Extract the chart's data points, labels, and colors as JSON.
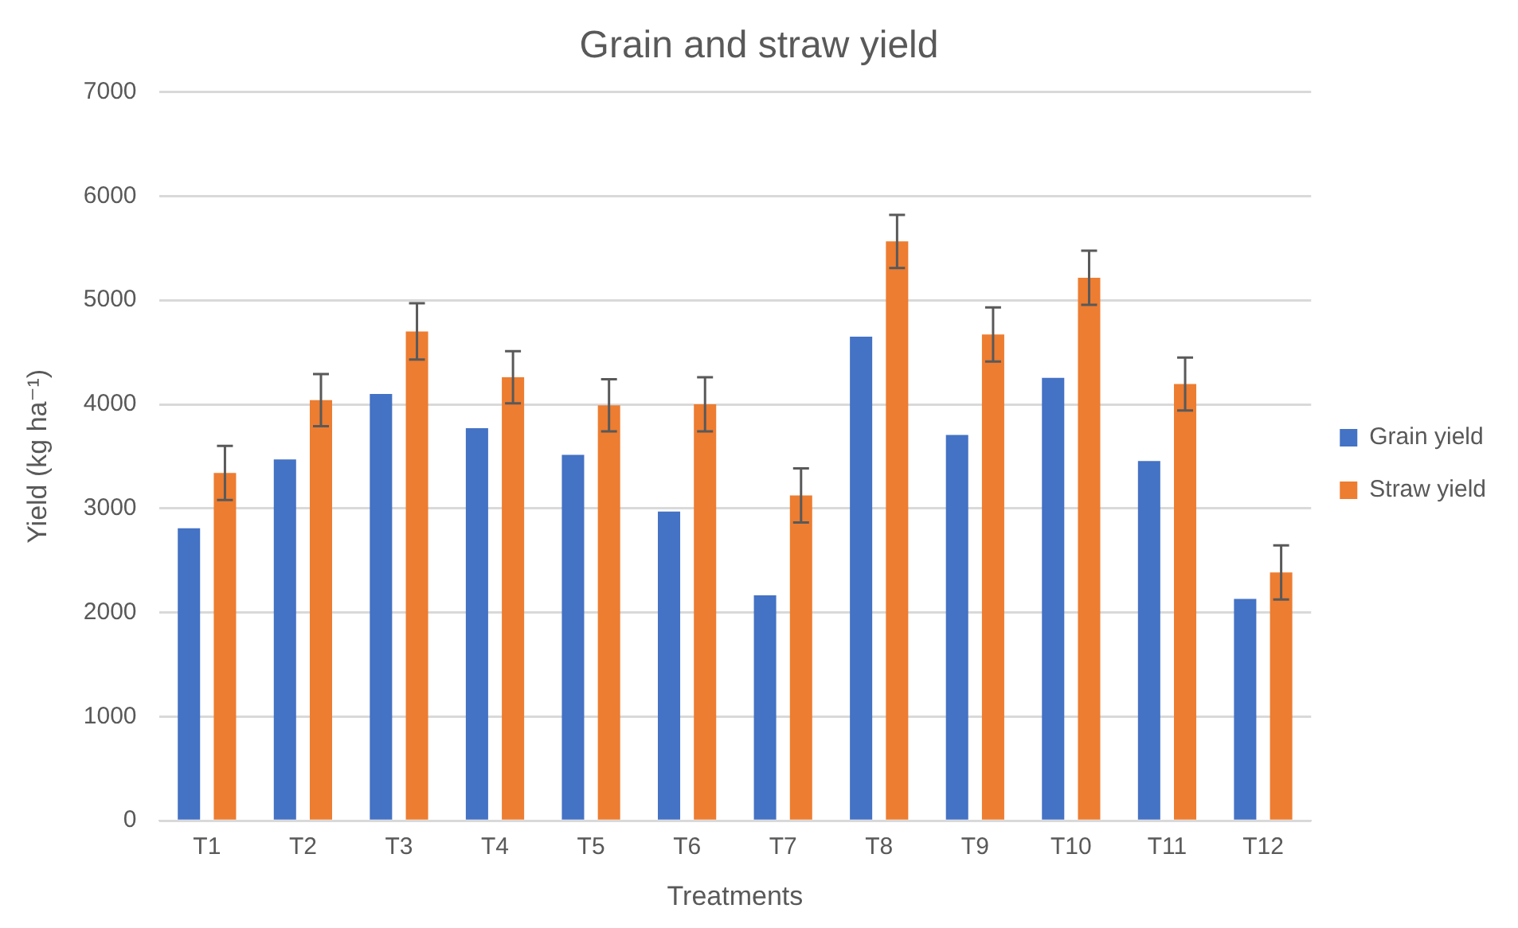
{
  "chart_data": {
    "type": "bar",
    "title": "Grain and straw yield",
    "xlabel": "Treatments",
    "ylabel": "Yield (kg ha⁻¹)",
    "categories": [
      "T1",
      "T2",
      "T3",
      "T4",
      "T5",
      "T6",
      "T7",
      "T8",
      "T9",
      "T10",
      "T11",
      "T12"
    ],
    "series": [
      {
        "name": "Grain yield",
        "color": "#4472c4",
        "values": [
          2810,
          3470,
          4100,
          3770,
          3515,
          2970,
          2165,
          4650,
          3705,
          4255,
          3455,
          2130
        ]
      },
      {
        "name": "Straw yield",
        "color": "#ed7d31",
        "values": [
          3340,
          4040,
          4700,
          4260,
          3990,
          4000,
          3125,
          5565,
          4670,
          5215,
          4195,
          2385
        ],
        "errors": [
          260,
          250,
          270,
          250,
          250,
          260,
          260,
          255,
          260,
          260,
          255,
          260
        ]
      }
    ],
    "ylim": [
      0,
      7000
    ],
    "yticks": [
      0,
      1000,
      2000,
      3000,
      4000,
      5000,
      6000,
      7000
    ],
    "grid": "y",
    "legend": "right"
  }
}
